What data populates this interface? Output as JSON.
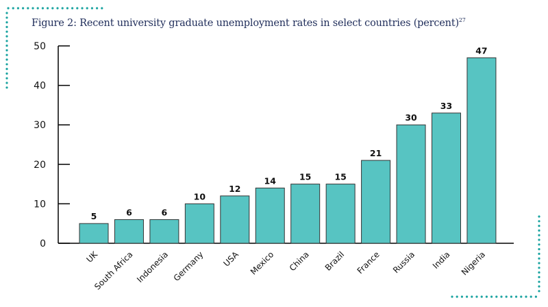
{
  "title": "Figure 2: Recent university graduate unemployment rates in select countries (percent)",
  "title_footnote": "27",
  "colors": {
    "bar": "#57c4c2",
    "bar_stroke": "#333333",
    "title": "#1f2d5a",
    "dots": "#1aa3a0"
  },
  "chart_data": {
    "type": "bar",
    "title": "Figure 2: Recent university graduate unemployment rates in select countries (percent)",
    "categories": [
      "UK",
      "South Africa",
      "Indonesia",
      "Germany",
      "USA",
      "Mexico",
      "China",
      "Brazil",
      "France",
      "Russia",
      "India",
      "Nigeria"
    ],
    "values": [
      5,
      6,
      6,
      10,
      12,
      14,
      15,
      15,
      21,
      30,
      33,
      47
    ],
    "ylim": [
      0,
      50
    ],
    "yticks": [
      0,
      10,
      20,
      30,
      40,
      50
    ],
    "grid": false,
    "legend": "none"
  }
}
